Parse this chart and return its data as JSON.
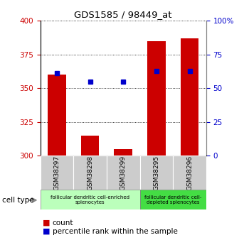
{
  "title": "GDS1585 / 98449_at",
  "samples": [
    "GSM38297",
    "GSM38298",
    "GSM38299",
    "GSM38295",
    "GSM38296"
  ],
  "counts": [
    360,
    315,
    305,
    385,
    387
  ],
  "percentiles": [
    61,
    55,
    55,
    63,
    63
  ],
  "ylim_left": [
    300,
    400
  ],
  "ylim_right": [
    0,
    100
  ],
  "yticks_left": [
    300,
    325,
    350,
    375,
    400
  ],
  "yticks_right": [
    0,
    25,
    50,
    75,
    100
  ],
  "bar_color": "#cc0000",
  "dot_color": "#0000cc",
  "bar_bottom": 300,
  "group1_label": "follicular dendritic cell-enriched\nsplenocytes",
  "group2_label": "follicular dendritic cell-\ndepleted splenocytes",
  "group1_indices": [
    0,
    1,
    2
  ],
  "group2_indices": [
    3,
    4
  ],
  "group1_color": "#bbffbb",
  "group2_color": "#44dd44",
  "cell_type_label": "cell type",
  "legend_count_label": "count",
  "legend_pct_label": "percentile rank within the sample",
  "tick_label_color_left": "#cc0000",
  "tick_label_color_right": "#0000cc",
  "sample_box_color": "#cccccc",
  "fig_width": 3.43,
  "fig_height": 3.45,
  "dpi": 100
}
